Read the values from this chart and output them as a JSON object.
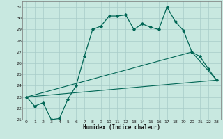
{
  "xlabel": "Humidex (Indice chaleur)",
  "xlim": [
    -0.5,
    23.5
  ],
  "ylim": [
    21,
    31.5
  ],
  "yticks": [
    21,
    22,
    23,
    24,
    25,
    26,
    27,
    28,
    29,
    30,
    31
  ],
  "xticks": [
    0,
    1,
    2,
    3,
    4,
    5,
    6,
    7,
    8,
    9,
    10,
    11,
    12,
    13,
    14,
    15,
    16,
    17,
    18,
    19,
    20,
    21,
    22,
    23
  ],
  "bg_color": "#c8e8e0",
  "grid_color": "#a8ccc8",
  "line_color": "#006655",
  "line1_x": [
    0,
    1,
    2,
    3,
    4,
    5,
    6,
    7,
    8,
    9,
    10,
    11,
    12,
    13,
    14,
    15,
    16,
    17,
    18,
    19,
    20,
    21,
    22,
    23
  ],
  "line1_y": [
    23.0,
    22.2,
    22.5,
    21.0,
    21.1,
    22.8,
    24.0,
    26.6,
    29.0,
    29.3,
    30.2,
    30.2,
    30.3,
    29.0,
    29.5,
    29.2,
    29.0,
    31.0,
    29.7,
    28.9,
    27.0,
    26.6,
    25.5,
    24.5
  ],
  "line2_x": [
    0,
    23
  ],
  "line2_y": [
    23.0,
    24.5
  ],
  "line3_x": [
    0,
    20,
    23
  ],
  "line3_y": [
    23.0,
    27.0,
    24.5
  ]
}
